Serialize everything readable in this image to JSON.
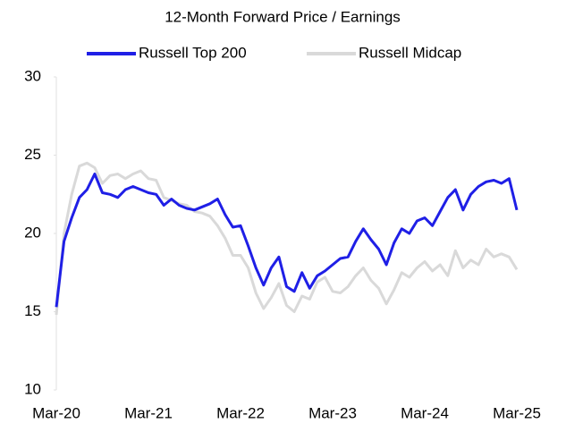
{
  "chart_data": {
    "type": "line",
    "title": "12-Month Forward Price / Earnings",
    "categories": [
      "Mar-20",
      null,
      null,
      null,
      null,
      null,
      null,
      null,
      null,
      null,
      null,
      null,
      "Mar-21",
      null,
      null,
      null,
      null,
      null,
      null,
      null,
      null,
      null,
      null,
      null,
      "Mar-22",
      null,
      null,
      null,
      null,
      null,
      null,
      null,
      null,
      null,
      null,
      null,
      "Mar-23",
      null,
      null,
      null,
      null,
      null,
      null,
      null,
      null,
      null,
      null,
      null,
      "Mar-24",
      null,
      null,
      null,
      null,
      null,
      null,
      null,
      null,
      null,
      null,
      null,
      "Mar-25"
    ],
    "series": [
      {
        "name": "Russell Top 200",
        "color": "#1f1fe6",
        "values": [
          15.3,
          19.5,
          21,
          22.3,
          22.8,
          23.8,
          22.6,
          22.5,
          22.3,
          22.8,
          23,
          22.8,
          22.6,
          22.5,
          21.8,
          22.2,
          21.8,
          21.6,
          21.5,
          21.7,
          21.9,
          22.2,
          21.2,
          20.4,
          20.5,
          19.2,
          17.8,
          16.7,
          17.8,
          18.5,
          16.6,
          16.3,
          17.5,
          16.5,
          17.3,
          17.6,
          18,
          18.4,
          18.5,
          19.5,
          20.3,
          19.6,
          19,
          18,
          19.4,
          20.3,
          20,
          20.8,
          21,
          20.5,
          21.4,
          22.3,
          22.8,
          21.5,
          22.5,
          23,
          23.3,
          23.4,
          23.2,
          23.5,
          21.5
        ]
      },
      {
        "name": "Russell Midcap",
        "color": "#d9d9d9",
        "values": [
          14.8,
          20,
          22.5,
          24.3,
          24.5,
          24.2,
          23.2,
          23.7,
          23.8,
          23.5,
          23.8,
          24,
          23.5,
          23.4,
          22.3,
          22.1,
          21.9,
          21.8,
          21.4,
          21.3,
          21.1,
          20.5,
          19.7,
          18.6,
          18.6,
          17.8,
          16.2,
          15.2,
          15.9,
          16.8,
          15.4,
          15,
          16,
          15.8,
          16.9,
          17.2,
          16.3,
          16.2,
          16.6,
          17.3,
          17.8,
          17,
          16.5,
          15.5,
          16.4,
          17.5,
          17.2,
          17.8,
          18.2,
          17.6,
          18,
          17.3,
          18.9,
          17.8,
          18.3,
          18,
          19,
          18.5,
          18.7,
          18.5,
          17.7
        ]
      }
    ],
    "ylim": [
      10,
      30
    ],
    "yticks": [
      10,
      15,
      20,
      25,
      30
    ],
    "legend": "top"
  }
}
